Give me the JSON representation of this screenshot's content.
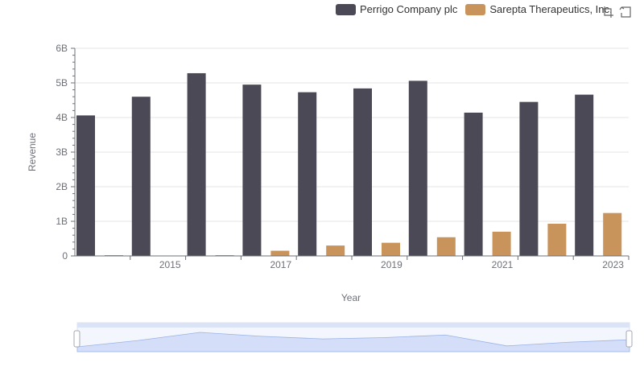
{
  "chart_data": {
    "type": "bar",
    "categories": [
      "2014",
      "2015",
      "2016",
      "2017",
      "2018",
      "2019",
      "2020",
      "2021",
      "2022",
      "2023"
    ],
    "series": [
      {
        "name": "Perrigo Company plc",
        "color": "#4a4955",
        "values": [
          4.06,
          4.6,
          5.28,
          4.95,
          4.73,
          4.84,
          5.06,
          4.14,
          4.45,
          4.66
        ]
      },
      {
        "name": "Sarepta Therapeutics, Inc.",
        "color": "#c9935c",
        "values": [
          0.01,
          0.0,
          0.005,
          0.15,
          0.3,
          0.38,
          0.54,
          0.7,
          0.93,
          1.24
        ]
      }
    ],
    "ylim": [
      0,
      6
    ],
    "yticks": [
      "0",
      "1B",
      "2B",
      "3B",
      "4B",
      "5B",
      "6B"
    ],
    "xtick_labels": [
      "2015",
      "2017",
      "2019",
      "2021",
      "2023"
    ],
    "xlabel": "Year",
    "ylabel": "Revenue",
    "units": "billions",
    "legend_position": "top-right"
  },
  "toolbox": {
    "zoom_icon": "data-zoom-icon",
    "reset_icon": "zoom-reset-icon"
  },
  "datazoom": {
    "range_start_pct": 0,
    "range_end_pct": 100
  }
}
